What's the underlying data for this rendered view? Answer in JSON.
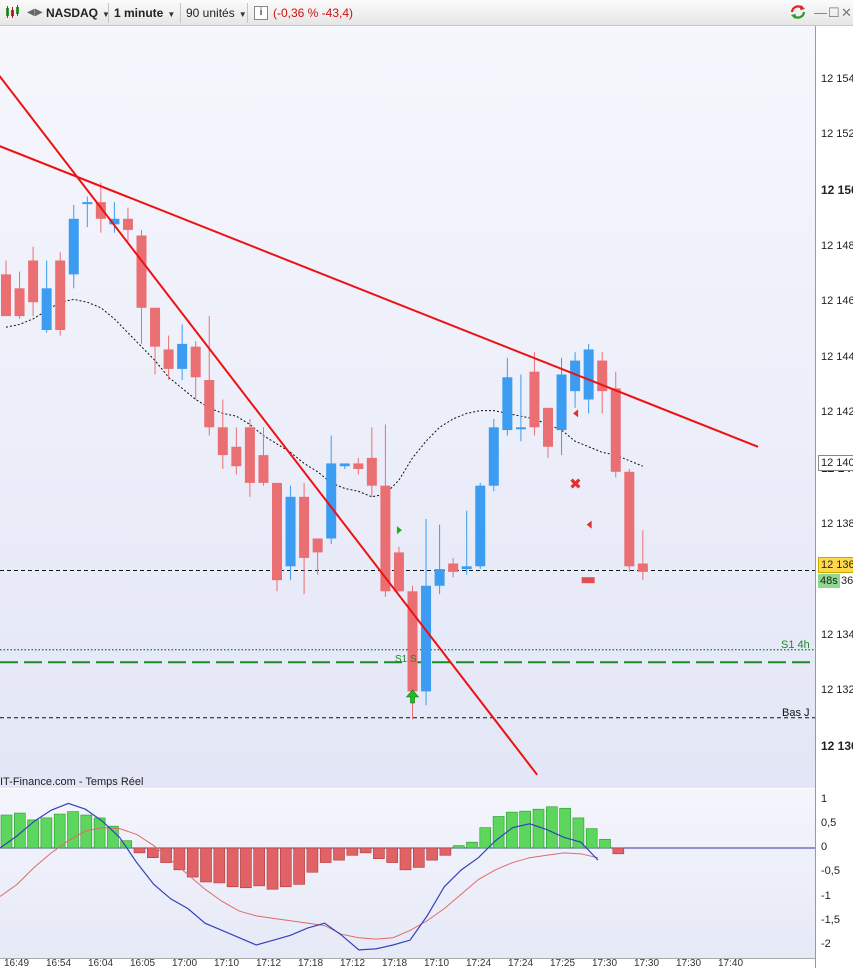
{
  "toolbar": {
    "symbol": "NASDAQ",
    "timeframe": "1 minute",
    "units": "90 unités",
    "info_icon_label": "i",
    "change": "(-0,36 % -43,4)",
    "icons": [
      "candlestick-icon",
      "chevron-left-icon",
      "chevron-right-icon",
      "info-icon",
      "refresh-icon",
      "minimize-icon",
      "restore-icon",
      "close-icon"
    ]
  },
  "price_axis": {
    "labels": [
      {
        "text": "12 154",
        "value": 12154,
        "bold": false
      },
      {
        "text": "12 152",
        "value": 12152,
        "bold": false
      },
      {
        "text": "12 150",
        "value": 12150,
        "bold": true
      },
      {
        "text": "12 148",
        "value": 12148,
        "bold": false
      },
      {
        "text": "12 146",
        "value": 12146,
        "bold": false
      },
      {
        "text": "12 144",
        "value": 12144,
        "bold": false
      },
      {
        "text": "12 142",
        "value": 12142,
        "bold": false
      },
      {
        "text": "12 140",
        "value": 12140,
        "bold": true
      },
      {
        "text": "12 138",
        "value": 12138,
        "bold": false
      },
      {
        "text": "12 134",
        "value": 12134,
        "bold": false
      },
      {
        "text": "12 132",
        "value": 12132,
        "bold": false
      },
      {
        "text": "12 130",
        "value": 12130,
        "bold": true
      }
    ],
    "ma_tag": "12 140",
    "last_price_tag": "12 136",
    "timer_tag": "48s",
    "timer_suffix": "36",
    "last_price_color": "#ffd94a",
    "timer_color": "#8fd88f"
  },
  "annotations": {
    "s1_label": "S1 4h",
    "bas_label": "Bas J",
    "s1s_label": "S1 S",
    "source": "IT-Finance.com - Temps Réel"
  },
  "indicator_axis": {
    "labels": [
      "1",
      "0,5",
      "0",
      "-0,5",
      "-1",
      "-1,5",
      "-2"
    ]
  },
  "time_axis": {
    "labels": [
      "16:49",
      "16:54",
      "16:04",
      "16:05",
      "17:00",
      "17:10",
      "17:12",
      "17:18",
      "17:12",
      "17:18",
      "17:10",
      "17:24",
      "17:24",
      "17:25",
      "17:30",
      "17:30",
      "17:30",
      "17:40"
    ]
  },
  "colors": {
    "bull": "#3b9cf2",
    "bear": "#ea6f72",
    "trend": "#ee1111",
    "support_green": "#1a8a2a",
    "ma": "#111111",
    "hist_pos": "#5cd65c",
    "hist_neg": "#e06266",
    "signal_line": "#3344bb",
    "slow_line": "#e06b6b"
  },
  "chart_data": {
    "type": "candlestick",
    "symbol": "NASDAQ",
    "interval": "1 minute",
    "ylim": [
      12129,
      12157
    ],
    "candles": [
      [
        12147,
        12145.5,
        12147.5,
        12145.5
      ],
      [
        12146.5,
        12145.5,
        12147.1,
        12145.4
      ],
      [
        12147.5,
        12146,
        12148,
        12145.5
      ],
      [
        12145,
        12146.5,
        12147.5,
        12144.9
      ],
      [
        12147.5,
        12145,
        12147.8,
        12144.8
      ],
      [
        12147,
        12149,
        12149.5,
        12146.5
      ],
      [
        12149.6,
        12149.6,
        12149.8,
        12148.7
      ],
      [
        12149.6,
        12149,
        12150.3,
        12148.5
      ],
      [
        12148.8,
        12149,
        12149.6,
        12148.5
      ],
      [
        12149,
        12148.6,
        12149.4,
        12148.2
      ],
      [
        12148.4,
        12145.8,
        12148.6,
        12144.5
      ],
      [
        12145.8,
        12144.4,
        12145.8,
        12143.4
      ],
      [
        12144.3,
        12143.6,
        12144.8,
        12143.2
      ],
      [
        12143.6,
        12144.5,
        12145.2,
        12143.2
      ],
      [
        12144.4,
        12143.3,
        12144.6,
        12142.5
      ],
      [
        12143.2,
        12141.5,
        12145.5,
        12141.2
      ],
      [
        12141.5,
        12140.5,
        12142.5,
        12140
      ],
      [
        12140.8,
        12140.1,
        12141.5,
        12139.8
      ],
      [
        12141.5,
        12139.5,
        12141.8,
        12139
      ],
      [
        12140.5,
        12139.5,
        12141.5,
        12139.4
      ],
      [
        12139.5,
        12136,
        12139.5,
        12135.6
      ],
      [
        12136.5,
        12139,
        12139.4,
        12136
      ],
      [
        12139,
        12136.8,
        12139.5,
        12135.5
      ],
      [
        12137.5,
        12137,
        12137.5,
        12136.2
      ],
      [
        12137.5,
        12140.2,
        12141.2,
        12137.3
      ],
      [
        12140.1,
        12140.2,
        12140.2,
        12140
      ],
      [
        12140.2,
        12140,
        12140.4,
        12139.8
      ],
      [
        12140.4,
        12139.4,
        12141.5,
        12139
      ],
      [
        12139.4,
        12135.6,
        12141.6,
        12135.4
      ],
      [
        12137,
        12135.6,
        12137.2,
        12135.6
      ],
      [
        12135.6,
        12132,
        12135.8,
        12131
      ],
      [
        12132,
        12135.8,
        12138.2,
        12131.5
      ],
      [
        12135.8,
        12136.4,
        12138,
        12135.5
      ],
      [
        12136.6,
        12136.3,
        12136.8,
        12136.1
      ],
      [
        12136.4,
        12136.5,
        12138.5,
        12136.2
      ],
      [
        12136.5,
        12139.4,
        12139.5,
        12136.4
      ],
      [
        12139.4,
        12141.5,
        12141.8,
        12139.2
      ],
      [
        12141.4,
        12143.3,
        12144,
        12141.2
      ],
      [
        12141.5,
        12141.5,
        12143.4,
        12141
      ],
      [
        12143.5,
        12141.5,
        12144.2,
        12141.2
      ],
      [
        12142.2,
        12140.8,
        12142.2,
        12140.4
      ],
      [
        12141.4,
        12143.4,
        12144,
        12140.5
      ],
      [
        12142.8,
        12143.9,
        12144.2,
        12142.2
      ],
      [
        12142.5,
        12144.3,
        12144.5,
        12142
      ],
      [
        12143.9,
        12142.8,
        12144.2,
        12142
      ],
      [
        12142.9,
        12139.9,
        12143.5,
        12139.7
      ],
      [
        12139.9,
        12136.5,
        12140,
        12136.3
      ],
      [
        12136.6,
        12136.3,
        12137.8,
        12136
      ]
    ],
    "moving_average": [
      12145.1,
      12145.2,
      12145.4,
      12145.7,
      12146.0,
      12146.1,
      12146.0,
      12145.8,
      12145.4,
      12144.9,
      12144.4,
      12143.9,
      12143.3,
      12142.9,
      12142.5,
      12142.2,
      12142.0,
      12141.9,
      12141.6,
      12141.2,
      12140.9,
      12140.6,
      12140.2,
      12139.9,
      12139.5,
      12139.3,
      12139.2,
      12139.0,
      12139.1,
      12139.6,
      12140.4,
      12141.0,
      12141.5,
      12141.8,
      12142.0,
      12142.1,
      12142.1,
      12142.0,
      12141.9,
      12141.8,
      12141.6,
      12141.4,
      12141.0,
      12140.8,
      12140.6,
      12140.5,
      12140.3,
      12140.1
    ],
    "trend_lines": [
      {
        "x0": -3.5,
        "y0": 12152.2,
        "x1": 55.5,
        "y1": 12140.8
      },
      {
        "x0": -5,
        "y0": 12157,
        "x1": 39.2,
        "y1": 12129
      }
    ],
    "levels": [
      {
        "label": "S1 4h",
        "value": 12133.5,
        "style": "dotted",
        "color": "#1a8a2a"
      },
      {
        "label": "",
        "value": 12133.05,
        "style": "long-dash",
        "color": "#1a8a2a"
      },
      {
        "label": "Bas J",
        "value": 12131.05,
        "style": "dashed",
        "color": "#111111"
      },
      {
        "label": "",
        "value": 12136.35,
        "style": "dashed",
        "color": "#111111"
      }
    ],
    "signals": [
      {
        "type": "buy-arrow",
        "index": 30,
        "value": 12131.8
      },
      {
        "type": "entry-triangle",
        "index": 29,
        "value": 12137.8
      },
      {
        "type": "cross",
        "index": 42,
        "value": 12139.5
      },
      {
        "type": "exit-triangle",
        "index": 42,
        "value": 12142
      },
      {
        "type": "exit-triangle",
        "index": 43,
        "value": 12138
      },
      {
        "type": "stop-box",
        "index": 43,
        "value": 12136
      }
    ],
    "indicator": {
      "ylim": [
        -2.25,
        1.2
      ],
      "histogram": [
        0.68,
        0.72,
        0.58,
        0.62,
        0.7,
        0.75,
        0.68,
        0.62,
        0.45,
        0.15,
        -0.1,
        -0.2,
        -0.3,
        -0.45,
        -0.6,
        -0.7,
        -0.72,
        -0.8,
        -0.82,
        -0.78,
        -0.85,
        -0.8,
        -0.75,
        -0.5,
        -0.3,
        -0.25,
        -0.15,
        -0.1,
        -0.22,
        -0.3,
        -0.45,
        -0.4,
        -0.25,
        -0.15,
        0.05,
        0.12,
        0.42,
        0.65,
        0.74,
        0.76,
        0.8,
        0.85,
        0.82,
        0.62,
        0.4,
        0.18,
        -0.12
      ],
      "line_fast": [
        0.0,
        0.25,
        0.55,
        0.78,
        0.92,
        0.8,
        0.55,
        0.22,
        -0.3,
        -0.75,
        -1.05,
        -1.25,
        -1.55,
        -1.7,
        -1.85,
        -2.0,
        -1.9,
        -1.8,
        -1.65,
        -1.55,
        -1.8,
        -2.1,
        -2.08,
        -2.0,
        -1.9,
        -1.4,
        -0.8,
        -0.45,
        -0.2,
        0.15,
        0.42,
        0.5,
        0.38,
        0.22,
        0.12,
        -0.25
      ],
      "line_slow": [
        -1.0,
        -0.75,
        -0.4,
        -0.1,
        0.15,
        0.35,
        0.42,
        0.4,
        0.28,
        0.05,
        -0.25,
        -0.55,
        -0.85,
        -1.1,
        -1.3,
        -1.4,
        -1.45,
        -1.5,
        -1.55,
        -1.6,
        -1.78,
        -1.85,
        -1.88,
        -1.85,
        -1.7,
        -1.5,
        -1.25,
        -0.95,
        -0.65,
        -0.45,
        -0.3,
        -0.2,
        -0.15,
        -0.1,
        -0.12,
        -0.2
      ]
    }
  }
}
